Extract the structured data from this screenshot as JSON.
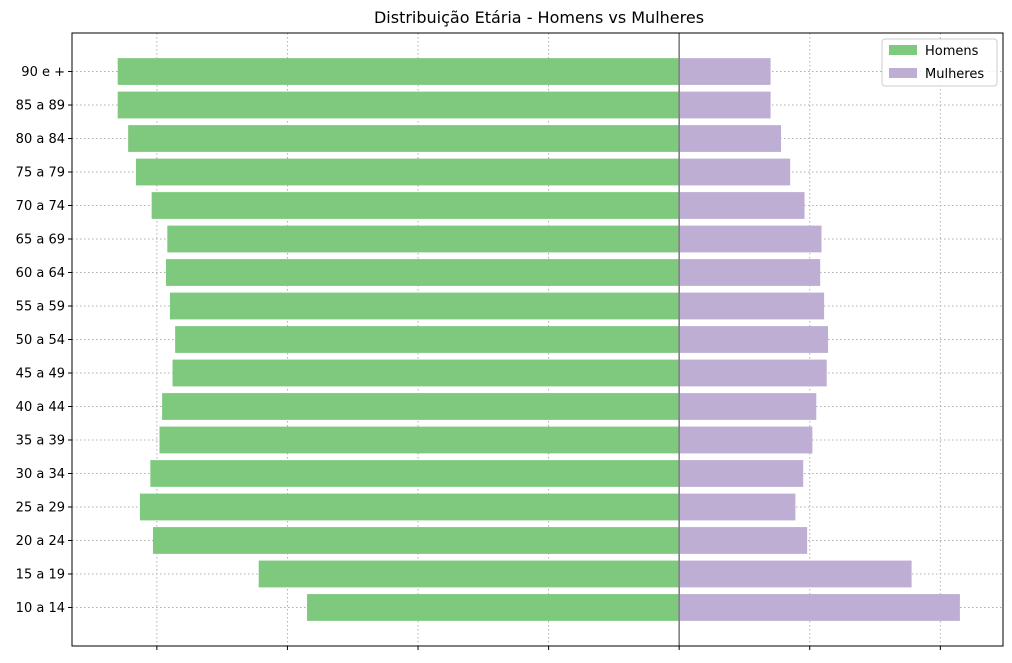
{
  "chart_data": {
    "type": "bar",
    "orientation": "horizontal",
    "title": "Distribuição Etária - Homens vs Mulheres",
    "xlabel": "",
    "ylabel": "",
    "categories": [
      "10 a 14",
      "15 a 19",
      "20 a 24",
      "25 a 29",
      "30 a 34",
      "35 a 39",
      "40 a 44",
      "45 a 49",
      "50 a 54",
      "55 a 59",
      "60 a 64",
      "65 a 69",
      "70 a 74",
      "75 a 79",
      "80 a 84",
      "85 a 89",
      "90 e +"
    ],
    "series": [
      {
        "name": "Homens",
        "color": "#7fc97f",
        "values": [
          -28.5,
          -32.2,
          -40.3,
          -41.3,
          -40.5,
          -39.8,
          -39.6,
          -38.8,
          -38.6,
          -39.0,
          -39.3,
          -39.2,
          -40.4,
          -41.6,
          -42.2,
          -43.0,
          -43.0
        ]
      },
      {
        "name": "Mulheres",
        "color": "#beaed4",
        "values": [
          21.5,
          17.8,
          9.8,
          8.9,
          9.5,
          10.2,
          10.5,
          11.3,
          11.4,
          11.1,
          10.8,
          10.9,
          9.6,
          8.5,
          7.8,
          7.0,
          7.0
        ]
      }
    ],
    "xlim": [
      -46.5,
      24.8
    ],
    "xticks": [
      -40,
      -30,
      -20,
      -10,
      0,
      10,
      20
    ],
    "xtick_labels_visible": false,
    "zero_line": true,
    "grid": true,
    "legend_position": "top-right"
  }
}
